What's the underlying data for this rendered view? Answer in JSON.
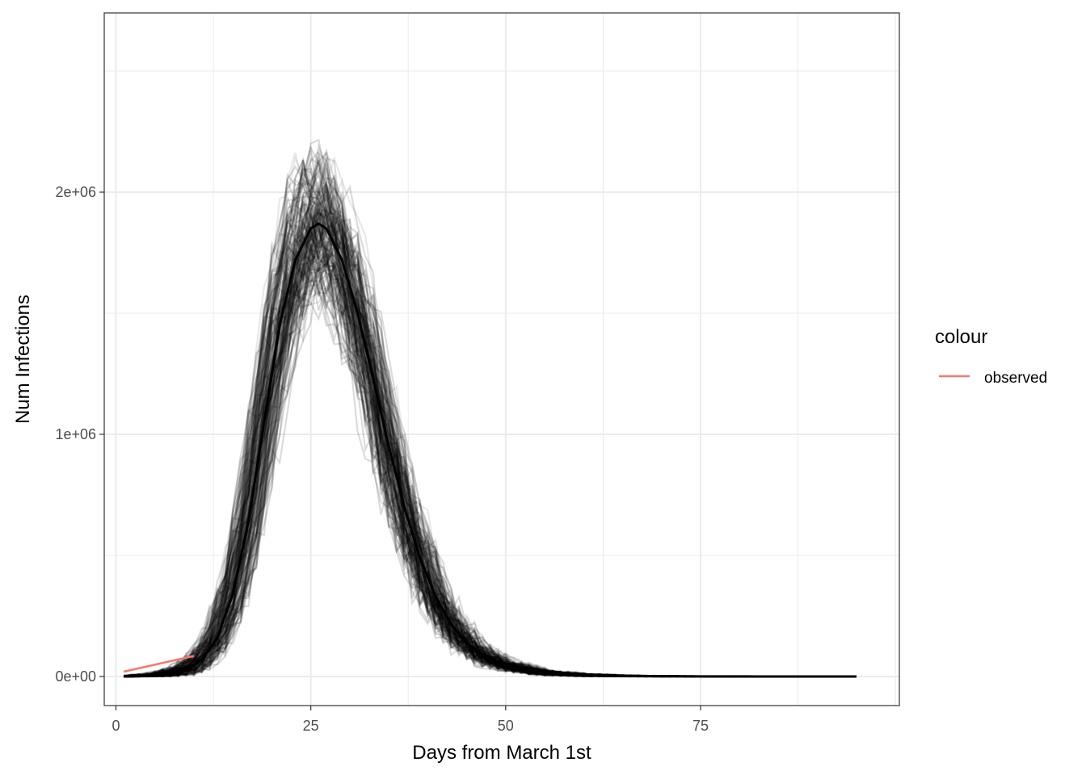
{
  "chart_data": {
    "type": "line",
    "title": "",
    "xlabel": "Days from March 1st",
    "ylabel": "Num Infections",
    "xlim": [
      -1.5,
      100.5
    ],
    "ylim": [
      -120000,
      2740000
    ],
    "x_ticks": [
      0,
      25,
      50,
      75
    ],
    "x_tick_labels": [
      "0",
      "25",
      "50",
      "75"
    ],
    "y_ticks": [
      0,
      1000000,
      2000000
    ],
    "y_tick_labels": [
      "0e+00",
      "1e+06",
      "2e+06"
    ],
    "grid": true,
    "legend": {
      "title": "colour",
      "placement": "right",
      "entries": [
        {
          "label": "observed",
          "color": "#F8766D"
        }
      ]
    },
    "simulations": {
      "description": "many semi-transparent black simulated trajectories",
      "color": "#000000",
      "x": [
        1,
        3,
        5,
        7,
        9,
        11,
        13,
        15,
        17,
        19,
        21,
        23,
        25,
        26,
        27,
        29,
        31,
        33,
        35,
        37,
        39,
        41,
        43,
        45,
        47,
        50,
        55,
        60,
        65,
        70,
        75,
        80,
        85,
        90,
        95
      ],
      "mean": [
        0,
        2000,
        6000,
        14000,
        30000,
        70000,
        160000,
        340000,
        640000,
        1050000,
        1450000,
        1720000,
        1850000,
        1870000,
        1850000,
        1720000,
        1500000,
        1230000,
        950000,
        700000,
        490000,
        330000,
        215000,
        140000,
        90000,
        45000,
        16000,
        6000,
        2500,
        1000,
        500,
        200,
        100,
        50,
        0
      ],
      "low": [
        0,
        0,
        1000,
        2000,
        5000,
        15000,
        60000,
        180000,
        430000,
        800000,
        1200000,
        1500000,
        1600000,
        1620000,
        1600000,
        1450000,
        1200000,
        920000,
        640000,
        420000,
        260000,
        160000,
        95000,
        55000,
        32000,
        12000,
        3000,
        800,
        200,
        50,
        0,
        0,
        0,
        0,
        0
      ],
      "high": [
        5000,
        20000,
        40000,
        70000,
        110000,
        190000,
        320000,
        560000,
        920000,
        1350000,
        1780000,
        2050000,
        2180000,
        2200000,
        2170000,
        2020000,
        1800000,
        1530000,
        1250000,
        980000,
        740000,
        540000,
        390000,
        270000,
        190000,
        110000,
        50000,
        25000,
        12000,
        6000,
        3000,
        1500,
        800,
        300,
        0
      ]
    },
    "series": [
      {
        "name": "observed",
        "color": "#F8766D",
        "x": [
          1,
          10
        ],
        "values": [
          20000,
          85000
        ]
      }
    ]
  }
}
